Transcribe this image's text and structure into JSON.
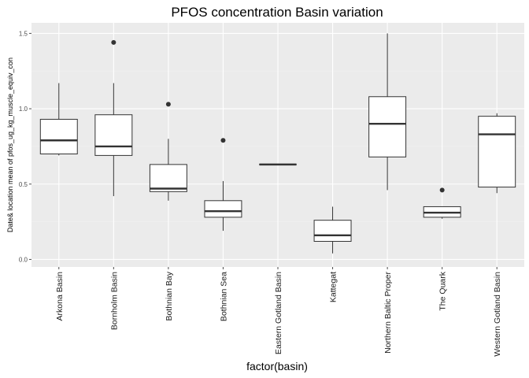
{
  "chart_data": {
    "type": "boxplot",
    "title": "PFOS concentration Basin variation",
    "xlabel": "factor(basin)",
    "ylabel": "Date& location mean of pfos_ug_kg_muscle_equiv_con",
    "ylim": [
      -0.05,
      1.57
    ],
    "yticks": [
      0.0,
      0.5,
      1.0,
      1.5
    ],
    "ytick_labels": [
      "0.0",
      "0.5",
      "1.0",
      "1.5"
    ],
    "categories": [
      "Arkona Basin",
      "Bornholm Basin",
      "Bothnian Bay",
      "Bothnian Sea",
      "Eastern Gotland Basin",
      "Kattegat",
      "Northern Baltic Proper",
      "The Quark",
      "Western Gotland Basin"
    ],
    "boxes": [
      {
        "min": 0.69,
        "q1": 0.7,
        "median": 0.79,
        "q3": 0.93,
        "max": 1.17,
        "outliers": []
      },
      {
        "min": 0.42,
        "q1": 0.69,
        "median": 0.75,
        "q3": 0.96,
        "max": 1.17,
        "outliers": [
          1.44
        ]
      },
      {
        "min": 0.39,
        "q1": 0.45,
        "median": 0.47,
        "q3": 0.63,
        "max": 0.8,
        "outliers": [
          1.03
        ]
      },
      {
        "min": 0.19,
        "q1": 0.28,
        "median": 0.32,
        "q3": 0.39,
        "max": 0.52,
        "outliers": [
          0.79
        ]
      },
      {
        "min": 0.63,
        "q1": 0.63,
        "median": 0.63,
        "q3": 0.63,
        "max": 0.63,
        "outliers": []
      },
      {
        "min": 0.04,
        "q1": 0.12,
        "median": 0.16,
        "q3": 0.26,
        "max": 0.35,
        "outliers": []
      },
      {
        "min": 0.46,
        "q1": 0.68,
        "median": 0.9,
        "q3": 1.08,
        "max": 1.5,
        "outliers": []
      },
      {
        "min": 0.27,
        "q1": 0.28,
        "median": 0.31,
        "q3": 0.35,
        "max": 0.35,
        "outliers": [
          0.46
        ]
      },
      {
        "min": 0.44,
        "q1": 0.48,
        "median": 0.83,
        "q3": 0.95,
        "max": 0.97,
        "outliers": []
      }
    ],
    "grid": true,
    "colors": {
      "panel": "#ebebeb",
      "grid_major": "#ffffff",
      "grid_minor": "#f2f2f2",
      "box_fill": "#ffffff",
      "box_line": "#333333",
      "tick": "#4d4d4d"
    }
  }
}
